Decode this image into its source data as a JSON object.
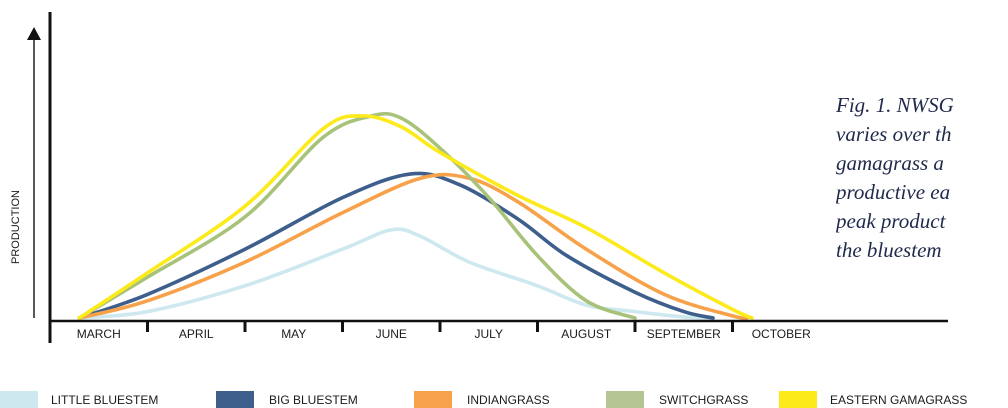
{
  "caption": {
    "lines": [
      "Fig. 1. NWSG",
      "varies over th",
      "gamagrass a",
      "productive ea",
      "peak product",
      "the bluestem"
    ]
  },
  "colors": {
    "little_bluestem": "#cde8ee",
    "big_bluestem": "#3e5f8c",
    "indiangrass": "#f7a24a",
    "switchgrass": "#a9c27a",
    "eastern_gamagrass": "#fcea1a",
    "axis": "#111111"
  },
  "chart_data": {
    "type": "line",
    "ylabel": "PRODUCTION",
    "xlabel": "",
    "x_scale": "months",
    "categories": [
      "MARCH",
      "APRIL",
      "MAY",
      "JUNE",
      "JULY",
      "AUGUST",
      "SEPTEMBER",
      "OCTOBER"
    ],
    "ylim": [
      0,
      100
    ],
    "y_ticks": false,
    "grid": false,
    "legend_position": "bottom",
    "series": [
      {
        "name": "LITTLE BLUESTEM",
        "color": "#cde8ee",
        "points": [
          [
            0.3,
            0
          ],
          [
            1.0,
            3
          ],
          [
            2.0,
            15
          ],
          [
            3.0,
            32
          ],
          [
            3.5,
            41
          ],
          [
            3.8,
            38
          ],
          [
            4.3,
            26
          ],
          [
            5.0,
            15
          ],
          [
            5.5,
            6
          ],
          [
            6.0,
            3
          ],
          [
            6.5,
            0.5
          ],
          [
            6.8,
            0
          ]
        ]
      },
      {
        "name": "BIG BLUESTEM",
        "color": "#3e5f8c",
        "points": [
          [
            0.3,
            0
          ],
          [
            1.0,
            11
          ],
          [
            2.0,
            32
          ],
          [
            3.0,
            56
          ],
          [
            3.7,
            67
          ],
          [
            4.2,
            62
          ],
          [
            4.8,
            46
          ],
          [
            5.3,
            29
          ],
          [
            6.0,
            12
          ],
          [
            6.5,
            3
          ],
          [
            6.8,
            0
          ]
        ]
      },
      {
        "name": "INDIANGRASS",
        "color": "#f7a24a",
        "points": [
          [
            0.3,
            0
          ],
          [
            1.0,
            8
          ],
          [
            2.0,
            26
          ],
          [
            3.0,
            49
          ],
          [
            3.8,
            65
          ],
          [
            4.3,
            65
          ],
          [
            4.8,
            54
          ],
          [
            5.5,
            32
          ],
          [
            6.3,
            11
          ],
          [
            7.0,
            1
          ],
          [
            7.15,
            0
          ]
        ]
      },
      {
        "name": "SWITCHGRASS",
        "color": "#a9c27a",
        "points": [
          [
            0.3,
            0
          ],
          [
            1.0,
            19
          ],
          [
            2.0,
            47
          ],
          [
            2.8,
            84
          ],
          [
            3.3,
            94
          ],
          [
            3.6,
            93
          ],
          [
            4.0,
            79
          ],
          [
            4.5,
            56
          ],
          [
            5.0,
            29
          ],
          [
            5.5,
            8
          ],
          [
            6.0,
            0
          ]
        ]
      },
      {
        "name": "EASTERN GAMAGRASS",
        "color": "#fcea1a",
        "points": [
          [
            0.3,
            0
          ],
          [
            1.0,
            21
          ],
          [
            2.0,
            52
          ],
          [
            2.8,
            88
          ],
          [
            3.2,
            94
          ],
          [
            3.6,
            89
          ],
          [
            4.0,
            77
          ],
          [
            4.8,
            57
          ],
          [
            5.5,
            42
          ],
          [
            6.3,
            21
          ],
          [
            7.0,
            4
          ],
          [
            7.2,
            0
          ]
        ]
      }
    ]
  }
}
